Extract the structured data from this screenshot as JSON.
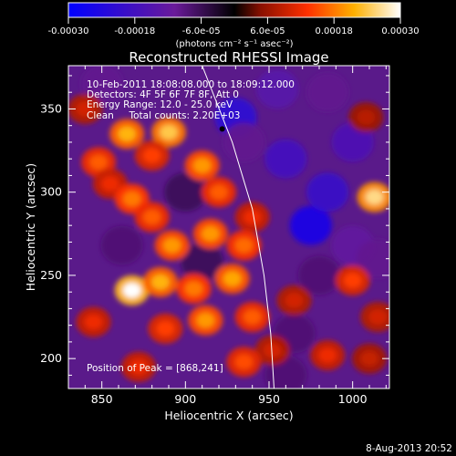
{
  "chart_data": {
    "type": "heatmap",
    "title": "Reconstructed RHESSI Image",
    "xlabel": "Heliocentric X (arcsec)",
    "ylabel": "Heliocentric Y (arcsec)",
    "xlim": [
      830,
      1022
    ],
    "ylim": [
      182,
      376
    ],
    "xticks": [
      850,
      900,
      950,
      1000
    ],
    "yticks": [
      200,
      250,
      300,
      350
    ],
    "colorbar": {
      "ticks": [
        "-0.00030",
        "-0.00018",
        "-6.0e-05",
        "6.0e-05",
        "0.00018",
        "0.00030"
      ],
      "tick_values": [
        -0.0003,
        -0.00018,
        -6e-05,
        6e-05,
        0.00018,
        0.0003
      ],
      "range": [
        -0.0003,
        0.0003
      ],
      "unit_label": "(photons cm⁻² s⁻¹ asec⁻²)"
    },
    "annotations": [
      "10-Feb-2011 18:08:08.000 to 18:09:12.000",
      "Detectors: 4F 5F 6F 7F 8F, Att 0",
      "Energy Range: 12.0 - 25.0 keV",
      "Clean     Total counts: 2.20E+03",
      "Position of Peak = [868,241]"
    ],
    "peak": {
      "x": 868,
      "y": 241
    },
    "hot_blobs": [
      {
        "x": 840,
        "y": 350,
        "v": 0.0001
      },
      {
        "x": 848,
        "y": 318,
        "v": 0.00016
      },
      {
        "x": 865,
        "y": 335,
        "v": 0.00022
      },
      {
        "x": 890,
        "y": 336,
        "v": 0.00024
      },
      {
        "x": 880,
        "y": 322,
        "v": 0.00014
      },
      {
        "x": 855,
        "y": 305,
        "v": 0.00012
      },
      {
        "x": 868,
        "y": 296,
        "v": 0.00018
      },
      {
        "x": 880,
        "y": 285,
        "v": 0.00016
      },
      {
        "x": 910,
        "y": 316,
        "v": 0.0002
      },
      {
        "x": 920,
        "y": 300,
        "v": 0.00016
      },
      {
        "x": 892,
        "y": 268,
        "v": 0.0002
      },
      {
        "x": 915,
        "y": 275,
        "v": 0.0002
      },
      {
        "x": 935,
        "y": 268,
        "v": 0.00017
      },
      {
        "x": 940,
        "y": 285,
        "v": 0.00012
      },
      {
        "x": 868,
        "y": 241,
        "v": 0.0003
      },
      {
        "x": 885,
        "y": 246,
        "v": 0.00022
      },
      {
        "x": 905,
        "y": 242,
        "v": 0.00018
      },
      {
        "x": 928,
        "y": 248,
        "v": 0.00021
      },
      {
        "x": 912,
        "y": 223,
        "v": 0.0002
      },
      {
        "x": 888,
        "y": 218,
        "v": 0.00014
      },
      {
        "x": 845,
        "y": 222,
        "v": 0.00012
      },
      {
        "x": 940,
        "y": 225,
        "v": 0.00016
      },
      {
        "x": 952,
        "y": 205,
        "v": 0.0001
      },
      {
        "x": 935,
        "y": 198,
        "v": 0.00015
      },
      {
        "x": 872,
        "y": 195,
        "v": 0.00012
      },
      {
        "x": 1013,
        "y": 297,
        "v": 0.00026
      },
      {
        "x": 1000,
        "y": 247,
        "v": 0.00014
      },
      {
        "x": 1015,
        "y": 225,
        "v": 0.0001
      },
      {
        "x": 985,
        "y": 202,
        "v": 0.00012
      },
      {
        "x": 1010,
        "y": 200,
        "v": 9e-05
      },
      {
        "x": 965,
        "y": 235,
        "v": 0.0001
      },
      {
        "x": 1008,
        "y": 345,
        "v": 8e-05
      }
    ],
    "cold_blobs": [
      {
        "x": 975,
        "y": 280,
        "v": -0.00026
      },
      {
        "x": 985,
        "y": 300,
        "v": -0.0002
      },
      {
        "x": 960,
        "y": 320,
        "v": -0.00018
      },
      {
        "x": 930,
        "y": 345,
        "v": -0.00022
      },
      {
        "x": 955,
        "y": 362,
        "v": -0.00014
      },
      {
        "x": 1000,
        "y": 330,
        "v": -0.00016
      },
      {
        "x": 1000,
        "y": 268,
        "v": -0.00012
      },
      {
        "x": 980,
        "y": 250,
        "v": -8e-05
      },
      {
        "x": 935,
        "y": 330,
        "v": -0.0001
      },
      {
        "x": 985,
        "y": 360,
        "v": -0.0001
      },
      {
        "x": 862,
        "y": 268,
        "v": -8e-05
      },
      {
        "x": 900,
        "y": 300,
        "v": -6e-05
      },
      {
        "x": 910,
        "y": 258,
        "v": -6e-05
      },
      {
        "x": 965,
        "y": 215,
        "v": -8e-05
      },
      {
        "x": 960,
        "y": 190,
        "v": -8e-05
      },
      {
        "x": 1015,
        "y": 260,
        "v": -0.0001
      },
      {
        "x": 850,
        "y": 365,
        "v": -0.0001
      }
    ],
    "limb_curve": [
      [
        910,
        376
      ],
      [
        928,
        330
      ],
      [
        940,
        290
      ],
      [
        947,
        250
      ],
      [
        951,
        215
      ],
      [
        953,
        182
      ]
    ],
    "marker": {
      "x": 922,
      "y": 338
    }
  },
  "footer": {
    "date": "8-Aug-2013 20:52"
  }
}
